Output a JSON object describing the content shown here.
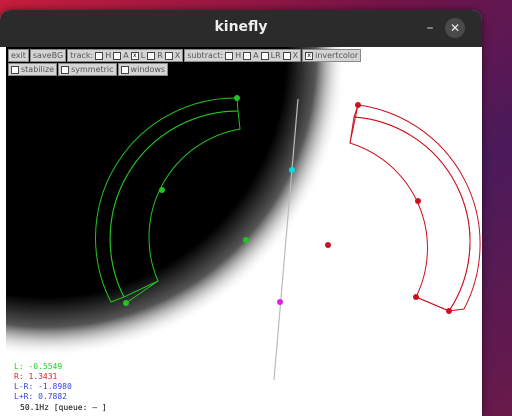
{
  "window": {
    "title": "kinefly",
    "minimize": "–",
    "close": "✕"
  },
  "toolbar": {
    "row1": [
      {
        "label": "exit",
        "type": "button"
      },
      {
        "label": "saveBG",
        "type": "button"
      },
      {
        "label": "track:",
        "type": "group",
        "items": [
          {
            "label": "H",
            "checked": false
          },
          {
            "label": "A",
            "checked": false
          },
          {
            "label": "L",
            "checked": true
          },
          {
            "label": "R",
            "checked": false
          },
          {
            "label": "X",
            "checked": false
          }
        ]
      },
      {
        "label": "subtract:",
        "type": "group",
        "items": [
          {
            "label": "H",
            "checked": false
          },
          {
            "label": "A",
            "checked": false
          },
          {
            "label": "LR",
            "checked": false
          },
          {
            "label": "X",
            "checked": false
          }
        ]
      },
      {
        "label": "invertcolor",
        "type": "check",
        "checked": true
      }
    ],
    "row2": [
      {
        "label": "stabilize",
        "type": "check",
        "checked": false
      },
      {
        "label": "symmetric",
        "type": "check",
        "checked": false
      },
      {
        "label": "windows",
        "type": "check",
        "checked": false
      }
    ]
  },
  "readouts": {
    "left": "L: -0.5549",
    "right": "R: 1.3431",
    "diff": "L-R: -1.8980",
    "sum": "L+R: 0.7882",
    "rate": "50.1Hz [queue: —     ]"
  },
  "colors": {
    "left_wing": "#22c422",
    "right_wing": "#cc1020",
    "axis": "#bbbbbb",
    "head_point": "#00e0e0",
    "tail_point": "#e020e0",
    "readout_left": "#22cc22",
    "readout_right": "#dd2222",
    "readout_diff": "#3344dd",
    "readout_sum": "#3344dd",
    "readout_rate": "#000000"
  }
}
